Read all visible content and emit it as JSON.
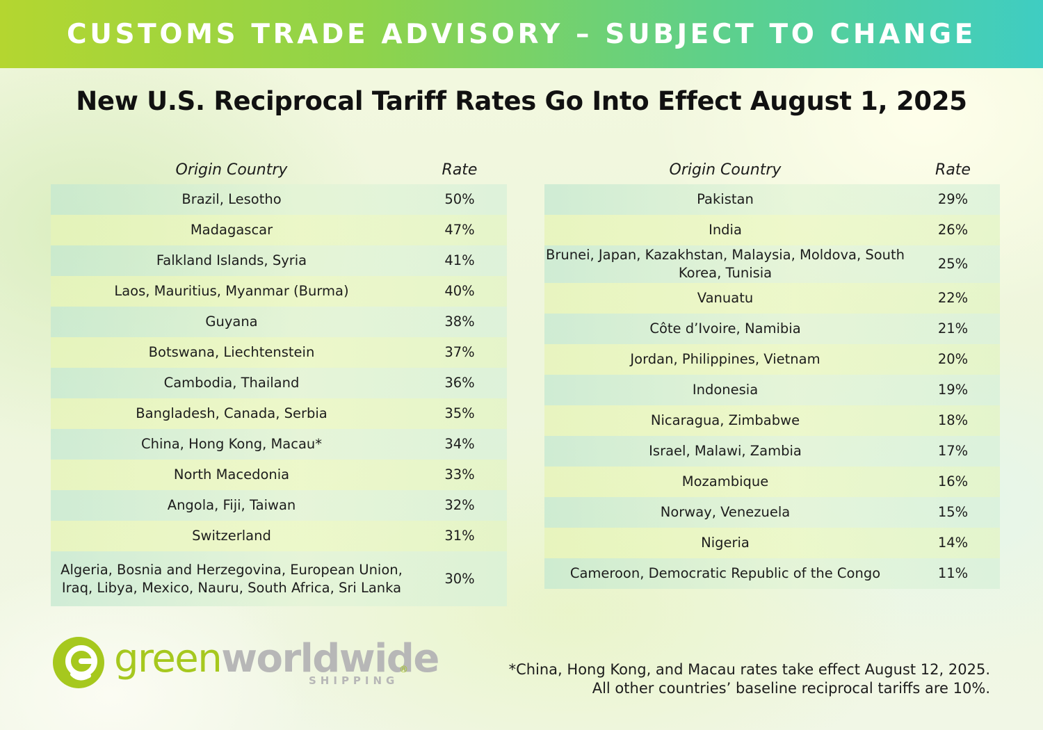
{
  "banner": {
    "text": "CUSTOMS TRADE ADVISORY – SUBJECT TO CHANGE"
  },
  "title": "New U.S. Reciprocal Tariff Rates Go Into Effect August 1, 2025",
  "table_left": {
    "headers": {
      "country": "Origin Country",
      "rate": "Rate"
    },
    "rows": [
      {
        "country": "Brazil, Lesotho",
        "rate": "50%"
      },
      {
        "country": "Madagascar",
        "rate": "47%"
      },
      {
        "country": "Falkland Islands, Syria",
        "rate": "41%"
      },
      {
        "country": "Laos, Mauritius, Myanmar (Burma)",
        "rate": "40%"
      },
      {
        "country": "Guyana",
        "rate": "38%"
      },
      {
        "country": "Botswana, Liechtenstein",
        "rate": "37%"
      },
      {
        "country": "Cambodia, Thailand",
        "rate": "36%"
      },
      {
        "country": "Bangladesh, Canada, Serbia",
        "rate": "35%"
      },
      {
        "country": "China, Hong Kong, Macau*",
        "rate": "34%"
      },
      {
        "country": "North Macedonia",
        "rate": "33%"
      },
      {
        "country": "Angola, Fiji, Taiwan",
        "rate": "32%"
      },
      {
        "country": "Switzerland",
        "rate": "31%"
      },
      {
        "country": "Algeria, Bosnia and Herzegovina, European Union, Iraq, Libya, Mexico, Nauru, South Africa, Sri Lanka",
        "rate": "30%"
      }
    ]
  },
  "table_right": {
    "headers": {
      "country": "Origin Country",
      "rate": "Rate"
    },
    "rows": [
      {
        "country": "Pakistan",
        "rate": "29%"
      },
      {
        "country": "India",
        "rate": "26%"
      },
      {
        "country": "Brunei, Japan, Kazakhstan, Malaysia, Moldova, South Korea, Tunisia",
        "rate": "25%"
      },
      {
        "country": "Vanuatu",
        "rate": "22%"
      },
      {
        "country": "Côte d’Ivoire, Namibia",
        "rate": "21%"
      },
      {
        "country": "Jordan, Philippines, Vietnam",
        "rate": "20%"
      },
      {
        "country": "Indonesia",
        "rate": "19%"
      },
      {
        "country": "Nicaragua, Zimbabwe",
        "rate": "18%"
      },
      {
        "country": "Israel, Malawi, Zambia",
        "rate": "17%"
      },
      {
        "country": "Mozambique",
        "rate": "16%"
      },
      {
        "country": "Norway, Venezuela",
        "rate": "15%"
      },
      {
        "country": "Nigeria",
        "rate": "14%"
      },
      {
        "country": "Cameroon, Democratic Republic of the Congo",
        "rate": "11%"
      }
    ]
  },
  "logo": {
    "word_green": "green",
    "word_grey": "worldwide",
    "sub": "SHIPPING",
    "registered": "®",
    "brand_green": "#a6c81e",
    "brand_grey": "#b7b7b7"
  },
  "footnote": {
    "line1": "*China, Hong Kong, and Macau rates take effect August 12, 2025.",
    "line2": "All other countries’ baseline reciprocal tariffs are 10%."
  }
}
